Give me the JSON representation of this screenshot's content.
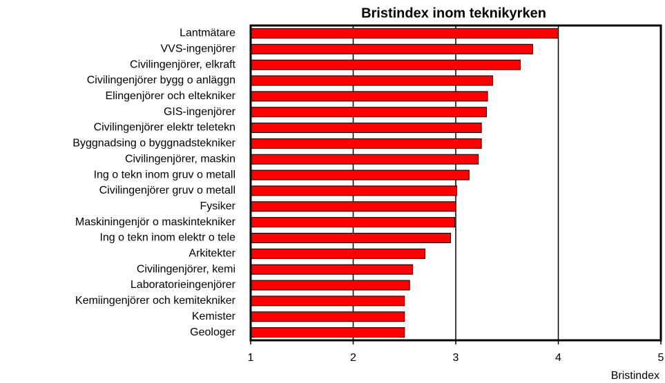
{
  "chart_data": {
    "type": "barh",
    "title": "Bristindex inom teknikyrken",
    "categories": [
      "Lantmätare",
      "VVS-ingenjörer",
      "Civilingenjörer, elkraft",
      "Civilingenjörer bygg o anläggn",
      "Elingenjörer och eltekniker",
      "GIS-ingenjörer",
      "Civilingenjörer elektr teletekn",
      "Byggnadsing o byggnadstekniker",
      "Civilingenjörer, maskin",
      "Ing o tekn inom gruv o metall",
      "Civilingenjörer gruv o metall",
      "Fysiker",
      "Maskiningenjör o maskintekniker",
      "Ing o tekn inom elektr o tele",
      "Arkitekter",
      "Civilingenjörer, kemi",
      "Laboratorieingenjörer",
      "Kemiingenjörer och kemitekniker",
      "Kemister",
      "Geologer"
    ],
    "values": [
      4.0,
      3.75,
      3.63,
      3.36,
      3.31,
      3.3,
      3.25,
      3.25,
      3.22,
      3.13,
      3.01,
      3.0,
      2.99,
      2.95,
      2.7,
      2.58,
      2.55,
      2.5,
      2.5,
      2.5
    ],
    "color": "#ff0000",
    "xlabel": "Bristindex",
    "xlim": [
      1,
      5
    ],
    "xticks": [
      1,
      2,
      3,
      4,
      5
    ],
    "grid": true
  }
}
